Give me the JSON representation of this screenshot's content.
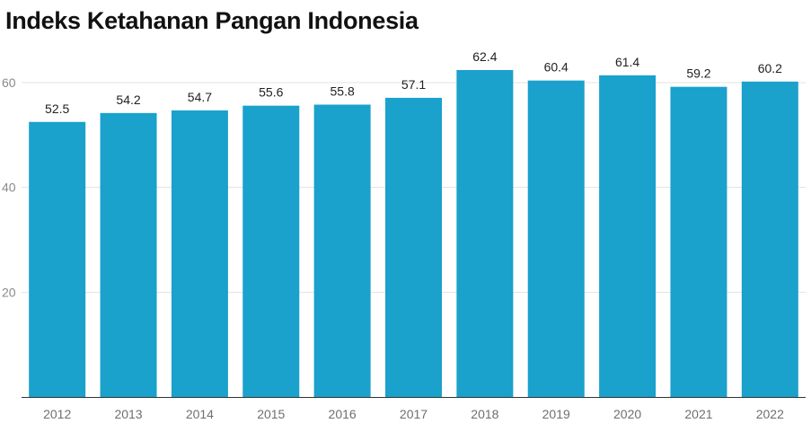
{
  "chart_data": {
    "type": "bar",
    "title": "Indeks Ketahanan Pangan Indonesia",
    "xlabel": "",
    "ylabel": "",
    "categories": [
      "2012",
      "2013",
      "2014",
      "2015",
      "2016",
      "2017",
      "2018",
      "2019",
      "2020",
      "2021",
      "2022"
    ],
    "values": [
      52.5,
      54.2,
      54.7,
      55.6,
      55.8,
      57.1,
      62.4,
      60.4,
      61.4,
      59.2,
      60.2
    ],
    "data_labels": [
      "52.5",
      "54.2",
      "54.7",
      "55.6",
      "55.8",
      "57.1",
      "62.4",
      "60.4",
      "61.4",
      "59.2",
      "60.2"
    ],
    "yticks": [
      20,
      40,
      60
    ],
    "ylim": [
      0,
      60
    ],
    "grid": true,
    "legend": "none",
    "bar_color": "#1aa1cc",
    "grid_color": "#e3e3e3",
    "axis_color": "#333333"
  }
}
